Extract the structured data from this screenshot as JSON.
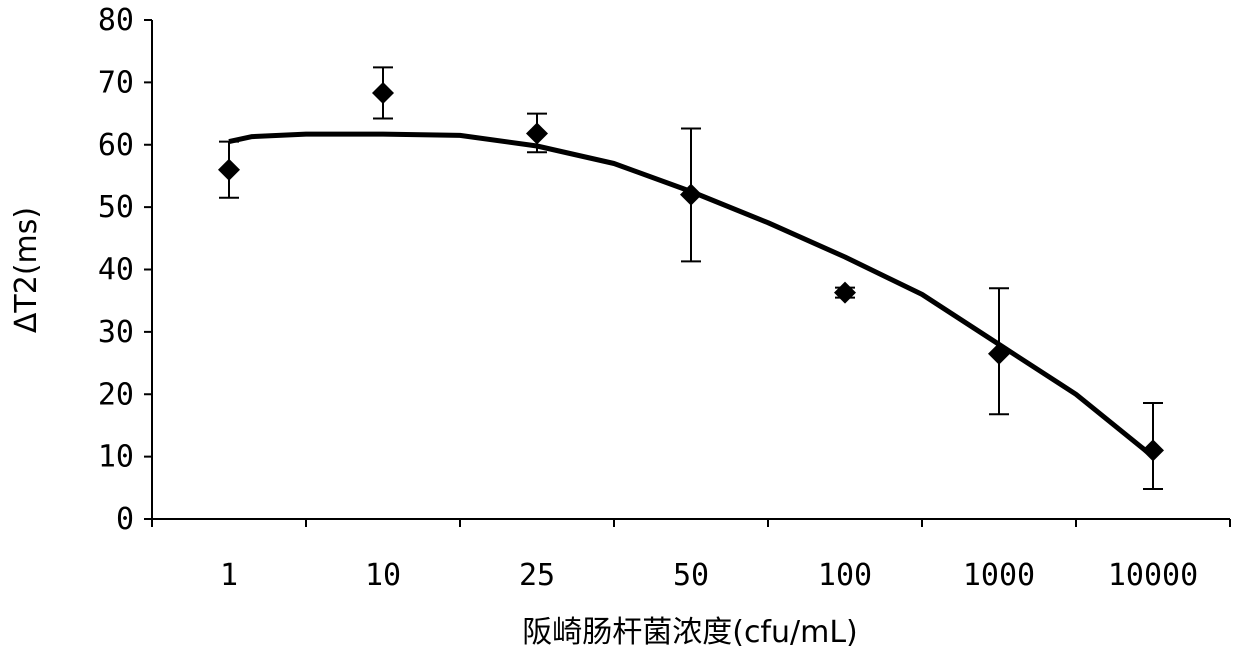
{
  "chart_data": {
    "type": "scatter",
    "title": "",
    "xlabel": "阪崎肠杆菌浓度(cfu/mL)",
    "ylabel": "ΔT2(ms)",
    "categories": [
      "1",
      "10",
      "25",
      "50",
      "100",
      "1000",
      "10000"
    ],
    "ylim": [
      0,
      80
    ],
    "yticks": [
      0,
      10,
      20,
      30,
      40,
      50,
      60,
      70,
      80
    ],
    "grid": false,
    "legend": "none",
    "points": [
      {
        "x": "1",
        "y": 56,
        "err_low": 51.5,
        "err_high": 60.5
      },
      {
        "x": "10",
        "y": 68.3,
        "err_low": 64.2,
        "err_high": 72.4
      },
      {
        "x": "25",
        "y": 61.8,
        "err_low": 58.8,
        "err_high": 65
      },
      {
        "x": "50",
        "y": 52,
        "err_low": 41.3,
        "err_high": 62.6
      },
      {
        "x": "100",
        "y": 36.3,
        "err_low": 35.5,
        "err_high": 37.1
      },
      {
        "x": "1000",
        "y": 26.5,
        "err_low": 16.8,
        "err_high": 37
      },
      {
        "x": "10000",
        "y": 11,
        "err_low": 4.8,
        "err_high": 18.6
      }
    ],
    "trendline": {
      "x_index": [
        0,
        0.15,
        0.5,
        1,
        1.5,
        2,
        2.5,
        3,
        3.5,
        4,
        4.5,
        5,
        5.5,
        6
      ],
      "y": [
        60.5,
        61.3,
        61.7,
        61.7,
        61.5,
        59.8,
        57,
        52.5,
        47.5,
        42,
        36,
        28,
        20,
        10
      ]
    },
    "colors": {
      "marker": "#000000",
      "line": "#000000"
    }
  }
}
